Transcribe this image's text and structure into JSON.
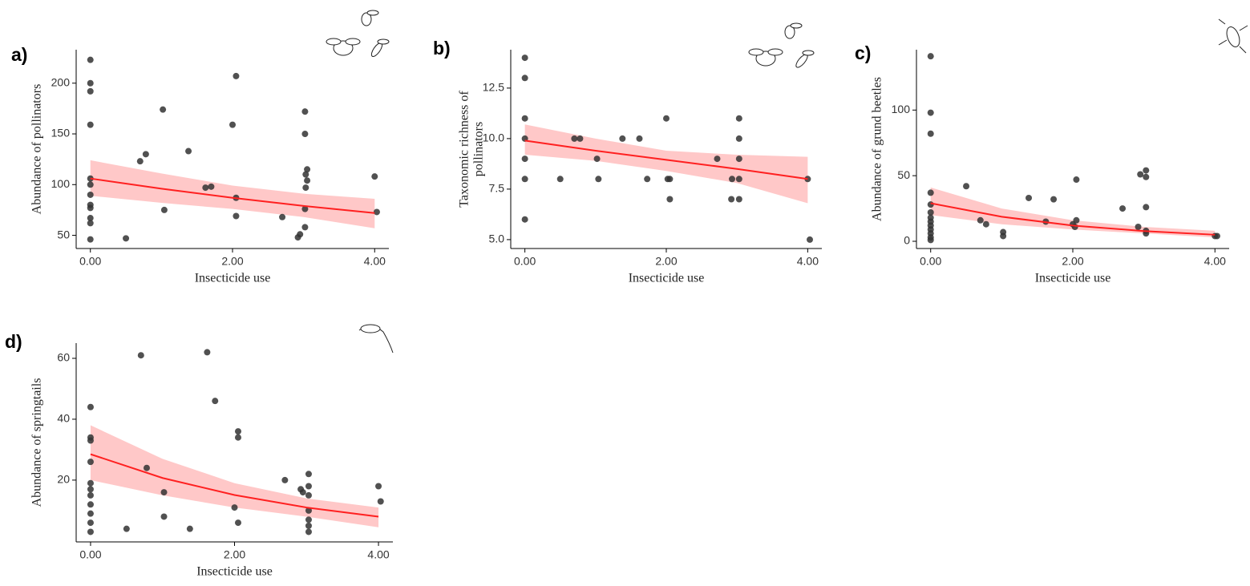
{
  "chart_data": [
    {
      "type": "scatter",
      "panel_label": "a)",
      "x_label": "Insecticide use",
      "y_label": "Abundance of pollinators",
      "xlim": [
        -0.2,
        4.2
      ],
      "ylim": [
        37,
        233
      ],
      "xticks": [
        {
          "value": 0,
          "label": "0.00"
        },
        {
          "value": 2,
          "label": "2.00"
        },
        {
          "value": 4,
          "label": "4.00"
        }
      ],
      "yticks": [
        50,
        100,
        150,
        200
      ],
      "point_color": "#333333",
      "x": [
        0,
        0,
        0,
        0,
        0,
        0,
        0,
        0,
        0,
        0,
        0,
        0,
        0.5,
        0.7,
        0.78,
        1.02,
        1.04,
        1.38,
        1.62,
        1.7,
        2.0,
        2.05,
        2.05,
        2.05,
        2.7,
        2.92,
        2.95,
        3.02,
        3.02,
        3.05,
        3.03,
        3.05,
        3.03,
        3.02,
        3.02,
        4.0,
        4.03
      ],
      "values": [
        223,
        200,
        192,
        159,
        106,
        100,
        90,
        80,
        77,
        67,
        62,
        46,
        47,
        123,
        130,
        174,
        75,
        133,
        97,
        98,
        159,
        207,
        87,
        69,
        68,
        48,
        51,
        172,
        150,
        115,
        110,
        104,
        97,
        76,
        58,
        108,
        73
      ],
      "fit": {
        "color": "#ff2020",
        "band_color": "#ffc8c8",
        "x": [
          0,
          1,
          2,
          3,
          4
        ],
        "values": [
          106,
          96,
          87,
          79,
          72
        ],
        "lower": [
          89,
          82,
          76,
          68,
          57
        ],
        "upper": [
          124,
          111,
          99,
          91,
          86
        ]
      }
    },
    {
      "type": "scatter",
      "panel_label": "b)",
      "x_label": "Insecticide use",
      "y_label": [
        "Taxonomic richness of",
        "pollinators"
      ],
      "xlim": [
        -0.2,
        4.2
      ],
      "ylim": [
        4.56,
        14.4
      ],
      "xticks": [
        {
          "value": 0,
          "label": "0.00"
        },
        {
          "value": 2,
          "label": "2.00"
        },
        {
          "value": 4,
          "label": "4.00"
        }
      ],
      "yticks": [
        {
          "value": 5,
          "label": "5.0"
        },
        7.5,
        {
          "value": 10,
          "label": "10.0"
        },
        12.5
      ],
      "point_color": "#333333",
      "x": [
        0,
        0,
        0,
        0,
        0,
        0,
        0,
        0.5,
        0.7,
        0.78,
        1.02,
        1.04,
        1.38,
        1.62,
        1.73,
        2.0,
        2.02,
        2.05,
        2.05,
        2.72,
        2.92,
        2.93,
        3.03,
        3.03,
        3.03,
        3.03,
        3.03,
        4.0,
        4.03
      ],
      "values": [
        14,
        13,
        11,
        10,
        9,
        8,
        6,
        8,
        10,
        10,
        9,
        8,
        10,
        10,
        8,
        11,
        8,
        8,
        7,
        9,
        7,
        8,
        11,
        10,
        9,
        8,
        7,
        8,
        5
      ],
      "fit": {
        "color": "#ff2020",
        "band_color": "#ffc8c8",
        "x": [
          0,
          1,
          2,
          3,
          4
        ],
        "values": [
          9.9,
          9.4,
          8.95,
          8.5,
          8.0
        ],
        "lower": [
          9.2,
          8.9,
          8.4,
          7.8,
          6.8
        ],
        "upper": [
          10.7,
          10.0,
          9.4,
          9.2,
          9.1
        ]
      }
    },
    {
      "type": "scatter",
      "panel_label": "c)",
      "x_label": "Insecticide use",
      "y_label": "Abundance of grund beetles",
      "xlim": [
        -0.2,
        4.2
      ],
      "ylim": [
        -5.5,
        146
      ],
      "xticks": [
        {
          "value": 0,
          "label": "0.00"
        },
        {
          "value": 2,
          "label": "2.00"
        },
        {
          "value": 4,
          "label": "4.00"
        }
      ],
      "yticks": [
        0,
        50,
        100
      ],
      "point_color": "#333333",
      "x": [
        0,
        0,
        0,
        0,
        0,
        0,
        0,
        0,
        0,
        0,
        0,
        0,
        0,
        0.5,
        0.7,
        0.78,
        1.02,
        1.02,
        1.38,
        1.62,
        1.73,
        2.0,
        2.03,
        2.05,
        2.05,
        2.7,
        2.92,
        2.95,
        3.03,
        3.03,
        3.03,
        3.03,
        3.03,
        4.0,
        4.03
      ],
      "values": [
        141,
        98,
        82,
        37,
        28,
        22,
        18,
        15,
        12,
        9,
        6,
        3,
        1,
        42,
        16,
        13,
        7,
        4,
        33,
        15,
        32,
        13,
        11,
        47,
        16,
        25,
        11,
        51,
        54,
        49,
        26,
        8,
        6,
        4,
        4
      ],
      "fit": {
        "color": "#ff2020",
        "band_color": "#ffc8c8",
        "x": [
          0,
          1,
          2,
          3,
          4
        ],
        "values": [
          29,
          18.7,
          12,
          7.8,
          5
        ],
        "lower": [
          20,
          13,
          9,
          6,
          3
        ],
        "upper": [
          41,
          25,
          16,
          11,
          8
        ]
      }
    },
    {
      "type": "scatter",
      "panel_label": "d)",
      "x_label": "Insecticide use",
      "y_label": "Abundance of springtails",
      "xlim": [
        -0.2,
        4.2
      ],
      "ylim": [
        -0.3,
        65
      ],
      "xticks": [
        {
          "value": 0,
          "label": "0.00"
        },
        {
          "value": 2,
          "label": "2.00"
        },
        {
          "value": 4,
          "label": "4.00"
        }
      ],
      "yticks": [
        20,
        40,
        60
      ],
      "point_color": "#333333",
      "x": [
        0,
        0,
        0,
        0,
        0,
        0,
        0,
        0,
        0,
        0,
        0,
        0.5,
        0.7,
        0.78,
        1.02,
        1.02,
        1.38,
        1.62,
        1.73,
        2.0,
        2.05,
        2.05,
        2.05,
        2.7,
        2.92,
        2.95,
        3.03,
        3.03,
        3.03,
        3.03,
        3.03,
        3.03,
        3.03,
        4.0,
        4.03
      ],
      "values": [
        44,
        34,
        33,
        26,
        19,
        17,
        15,
        12,
        9,
        6,
        3,
        4,
        61,
        24,
        16,
        8,
        4,
        62,
        46,
        11,
        36,
        34,
        6,
        20,
        17,
        16,
        22,
        18,
        15,
        10,
        7,
        5,
        3,
        18,
        13
      ],
      "fit": {
        "color": "#ff2020",
        "band_color": "#ffc8c8",
        "x": [
          0,
          1,
          2,
          3,
          4
        ],
        "values": [
          28.5,
          20.7,
          15.1,
          11,
          8
        ],
        "lower": [
          20,
          15,
          11,
          8,
          4.5
        ],
        "upper": [
          38,
          27,
          19,
          14,
          11
        ]
      }
    }
  ]
}
